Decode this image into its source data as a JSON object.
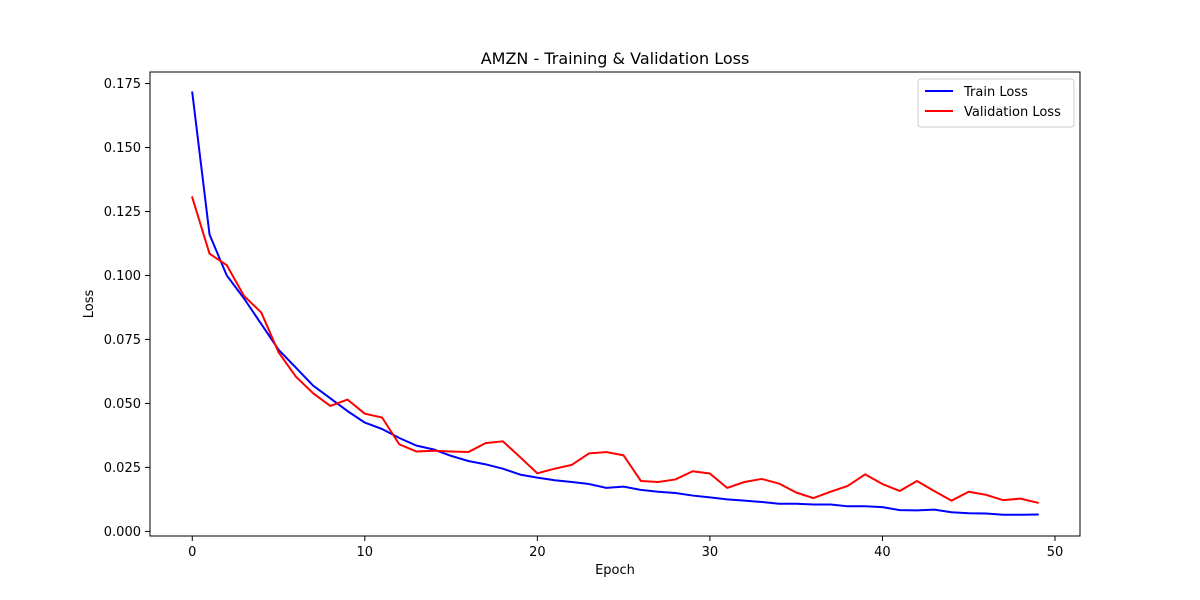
{
  "chart_data": {
    "type": "line",
    "title": "AMZN - Training & Validation Loss",
    "xlabel": "Epoch",
    "ylabel": "Loss",
    "xlim": [
      -2.45,
      51.45
    ],
    "ylim": [
      -0.0018,
      0.1795
    ],
    "xticks": [
      0,
      10,
      20,
      30,
      40,
      50
    ],
    "yticks": [
      0.0,
      0.025,
      0.05,
      0.075,
      0.1,
      0.125,
      0.15,
      0.175
    ],
    "xtick_labels": [
      "0",
      "10",
      "20",
      "30",
      "40",
      "50"
    ],
    "ytick_labels": [
      "0.000",
      "0.025",
      "0.050",
      "0.075",
      "0.100",
      "0.125",
      "0.150",
      "0.175"
    ],
    "grid": false,
    "legend_position": "upper right",
    "x": [
      0,
      1,
      2,
      3,
      4,
      5,
      6,
      7,
      8,
      9,
      10,
      11,
      12,
      13,
      14,
      15,
      16,
      17,
      18,
      19,
      20,
      21,
      22,
      23,
      24,
      25,
      26,
      27,
      28,
      29,
      30,
      31,
      32,
      33,
      34,
      35,
      36,
      37,
      38,
      39,
      40,
      41,
      42,
      43,
      44,
      45,
      46,
      47,
      48,
      49
    ],
    "series": [
      {
        "name": "Train Loss",
        "color": "#0000ff",
        "values": [
          0.1715,
          0.116,
          0.1,
          0.091,
          0.081,
          0.071,
          0.064,
          0.057,
          0.052,
          0.047,
          0.0425,
          0.04,
          0.0365,
          0.0335,
          0.032,
          0.0295,
          0.0275,
          0.0262,
          0.0245,
          0.0222,
          0.021,
          0.02,
          0.0193,
          0.0185,
          0.017,
          0.0175,
          0.0162,
          0.0155,
          0.015,
          0.014,
          0.0133,
          0.0125,
          0.012,
          0.0115,
          0.0108,
          0.0108,
          0.0105,
          0.0105,
          0.0098,
          0.0098,
          0.0095,
          0.0083,
          0.0082,
          0.0085,
          0.0075,
          0.0071,
          0.007,
          0.0065,
          0.0065,
          0.0066
        ]
      },
      {
        "name": "Validation Loss",
        "color": "#ff0000",
        "values": [
          0.1305,
          0.1085,
          0.104,
          0.092,
          0.0855,
          0.07,
          0.0605,
          0.054,
          0.049,
          0.0515,
          0.046,
          0.0445,
          0.034,
          0.0312,
          0.0315,
          0.0312,
          0.031,
          0.0345,
          0.0352,
          0.029,
          0.0227,
          0.0245,
          0.026,
          0.0305,
          0.031,
          0.0297,
          0.0197,
          0.0193,
          0.0203,
          0.0235,
          0.0226,
          0.017,
          0.0193,
          0.0205,
          0.0187,
          0.0152,
          0.013,
          0.0155,
          0.0178,
          0.0223,
          0.0185,
          0.0158,
          0.0197,
          0.0158,
          0.012,
          0.0155,
          0.0143,
          0.0122,
          0.0128,
          0.0112
        ]
      }
    ]
  }
}
